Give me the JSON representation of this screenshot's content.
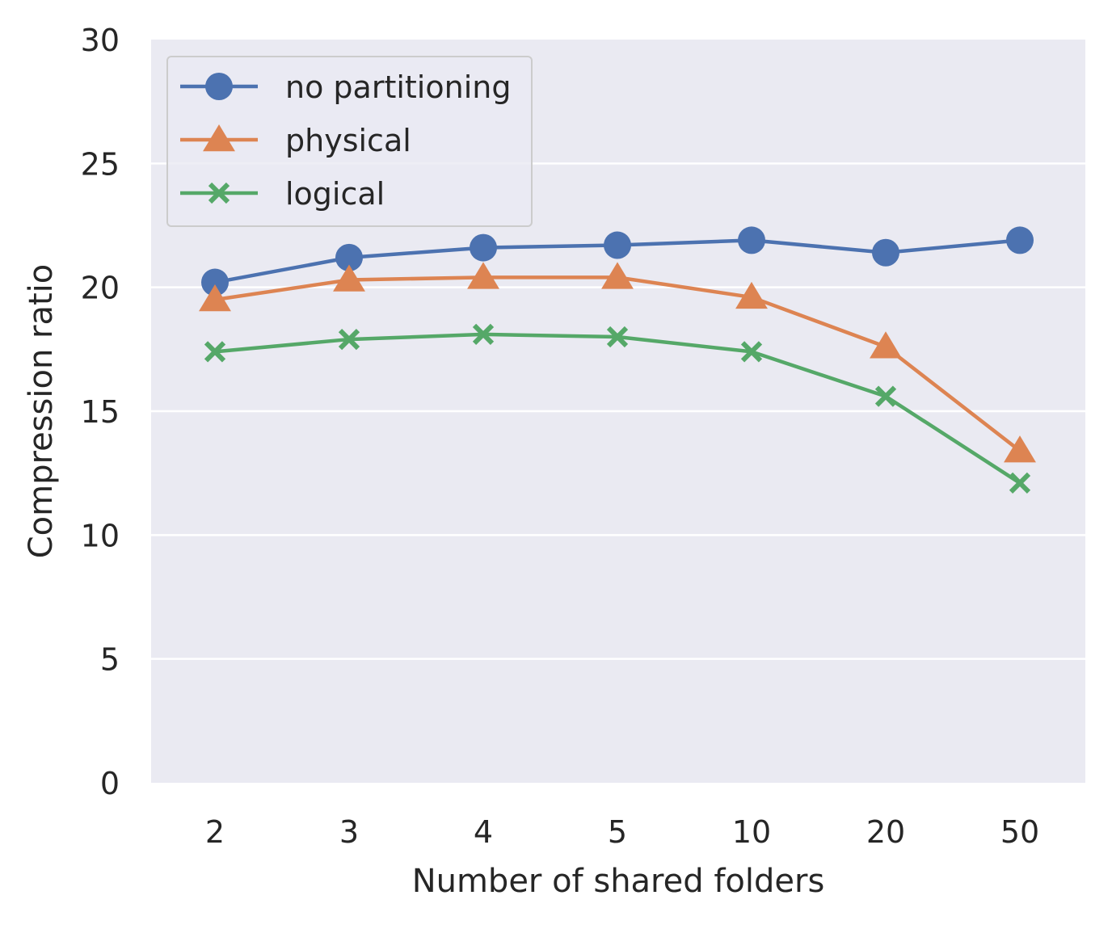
{
  "chart_data": {
    "type": "line",
    "title": "",
    "xlabel": "Number of shared folders",
    "ylabel": "Compression ratio",
    "categories": [
      "2",
      "3",
      "4",
      "5",
      "10",
      "20",
      "50"
    ],
    "ylim": [
      0,
      30
    ],
    "yticks": [
      "0",
      "5",
      "10",
      "15",
      "20",
      "25",
      "30"
    ],
    "grid": true,
    "legend_position": "top-left",
    "series": [
      {
        "name": "no partitioning",
        "marker": "circle",
        "color": "#4c72b0",
        "values": [
          20.2,
          21.2,
          21.6,
          21.7,
          21.9,
          21.4,
          21.9
        ]
      },
      {
        "name": "physical",
        "marker": "triangle",
        "color": "#dd8452",
        "values": [
          19.5,
          20.3,
          20.4,
          20.4,
          19.6,
          17.6,
          13.4
        ]
      },
      {
        "name": "logical",
        "marker": "x",
        "color": "#55a868",
        "values": [
          17.4,
          17.9,
          18.1,
          18.0,
          17.4,
          15.6,
          12.1
        ]
      }
    ]
  }
}
